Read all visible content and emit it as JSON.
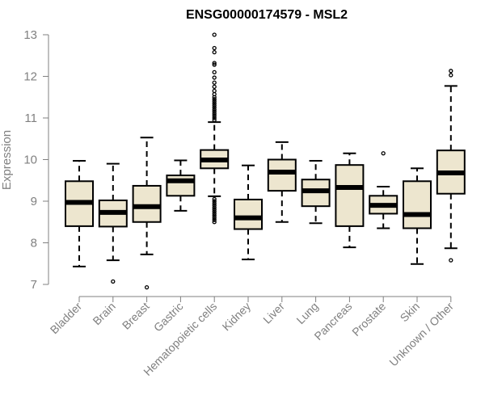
{
  "chart_data": {
    "type": "box",
    "title": "ENSG00000174579 - MSL2",
    "xlabel": "",
    "ylabel": "Expression",
    "ylim": [
      7,
      13
    ],
    "yticks": [
      7,
      8,
      9,
      10,
      11,
      12,
      13
    ],
    "box_fill": "#ede6cf",
    "box_stroke": "#000000",
    "axis_color": "#808080",
    "categories": [
      "Bladder",
      "Brain",
      "Breast",
      "Gastric",
      "Hematopoietic cells",
      "Kidney",
      "Liver",
      "Lung",
      "Pancreas",
      "Prostate",
      "Skin",
      "Unknown / Other"
    ],
    "boxes": [
      {
        "name": "Bladder",
        "whisker_low": 7.43,
        "q1": 8.4,
        "median": 8.97,
        "q3": 9.48,
        "whisker_high": 9.97,
        "outliers": []
      },
      {
        "name": "Brain",
        "whisker_low": 7.58,
        "q1": 8.39,
        "median": 8.73,
        "q3": 9.02,
        "whisker_high": 9.9,
        "outliers": [
          7.07
        ]
      },
      {
        "name": "Breast",
        "whisker_low": 7.72,
        "q1": 8.5,
        "median": 8.87,
        "q3": 9.37,
        "whisker_high": 10.53,
        "outliers": [
          6.93
        ]
      },
      {
        "name": "Gastric",
        "whisker_low": 8.77,
        "q1": 9.13,
        "median": 9.49,
        "q3": 9.62,
        "whisker_high": 9.98,
        "outliers": []
      },
      {
        "name": "Hematopoietic cells",
        "whisker_low": 9.12,
        "q1": 9.79,
        "median": 9.99,
        "q3": 10.23,
        "whisker_high": 10.9,
        "outliers": [
          13.0,
          12.68,
          12.58,
          12.32,
          12.28,
          12.1,
          11.97,
          11.85,
          11.75,
          11.65,
          11.57,
          11.5,
          11.45,
          11.4,
          11.35,
          11.3,
          11.25,
          11.2,
          11.15,
          11.1,
          11.05,
          11.0,
          10.95,
          9.05,
          9.0,
          8.95,
          8.9,
          8.85,
          8.8,
          8.75,
          8.7,
          8.65,
          8.6,
          8.55,
          8.5
        ]
      },
      {
        "name": "Kidney",
        "whisker_low": 7.6,
        "q1": 8.33,
        "median": 8.6,
        "q3": 9.04,
        "whisker_high": 9.86,
        "outliers": []
      },
      {
        "name": "Liver",
        "whisker_low": 8.5,
        "q1": 9.25,
        "median": 9.7,
        "q3": 10.0,
        "whisker_high": 10.42,
        "outliers": []
      },
      {
        "name": "Lung",
        "whisker_low": 8.47,
        "q1": 8.88,
        "median": 9.25,
        "q3": 9.52,
        "whisker_high": 9.97,
        "outliers": []
      },
      {
        "name": "Pancreas",
        "whisker_low": 7.89,
        "q1": 8.4,
        "median": 9.33,
        "q3": 9.87,
        "whisker_high": 10.15,
        "outliers": []
      },
      {
        "name": "Prostate",
        "whisker_low": 8.35,
        "q1": 8.7,
        "median": 8.9,
        "q3": 9.13,
        "whisker_high": 9.35,
        "outliers": [
          10.15
        ]
      },
      {
        "name": "Skin",
        "whisker_low": 7.49,
        "q1": 8.35,
        "median": 8.68,
        "q3": 9.48,
        "whisker_high": 9.79,
        "outliers": []
      },
      {
        "name": "Unknown / Other",
        "whisker_low": 7.87,
        "q1": 9.18,
        "median": 9.68,
        "q3": 10.22,
        "whisker_high": 11.77,
        "outliers": [
          12.13,
          12.03,
          7.58
        ]
      }
    ]
  }
}
